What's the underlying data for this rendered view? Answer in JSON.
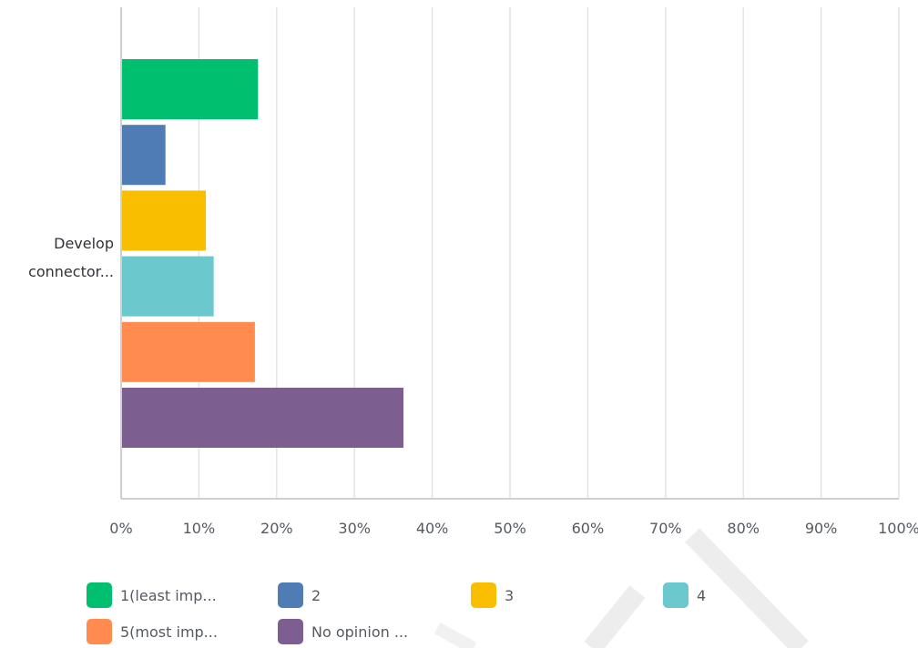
{
  "chart_data": {
    "type": "bar",
    "orientation": "horizontal",
    "categories": [
      "Develop connector..."
    ],
    "category_label_lines": [
      "Develop",
      "connector..."
    ],
    "series": [
      {
        "name": "1(least imp...",
        "values": [
          17.6
        ],
        "color": "#00bf6f"
      },
      {
        "name": "2",
        "values": [
          5.7
        ],
        "color": "#507cb6"
      },
      {
        "name": "3",
        "values": [
          10.9
        ],
        "color": "#f9be00"
      },
      {
        "name": "4",
        "values": [
          11.9
        ],
        "color": "#6bc8cd"
      },
      {
        "name": "5(most imp...",
        "values": [
          17.2
        ],
        "color": "#ff8b4f"
      },
      {
        "name": "No opinion ...",
        "values": [
          36.3
        ],
        "color": "#7d5e90"
      }
    ],
    "xlim": [
      0,
      100
    ],
    "x_ticks": [
      "0%",
      "10%",
      "20%",
      "30%",
      "40%",
      "50%",
      "60%",
      "70%",
      "80%",
      "90%",
      "100%"
    ],
    "grid": true,
    "legend_position": "bottom",
    "xlabel": "",
    "ylabel": ""
  }
}
